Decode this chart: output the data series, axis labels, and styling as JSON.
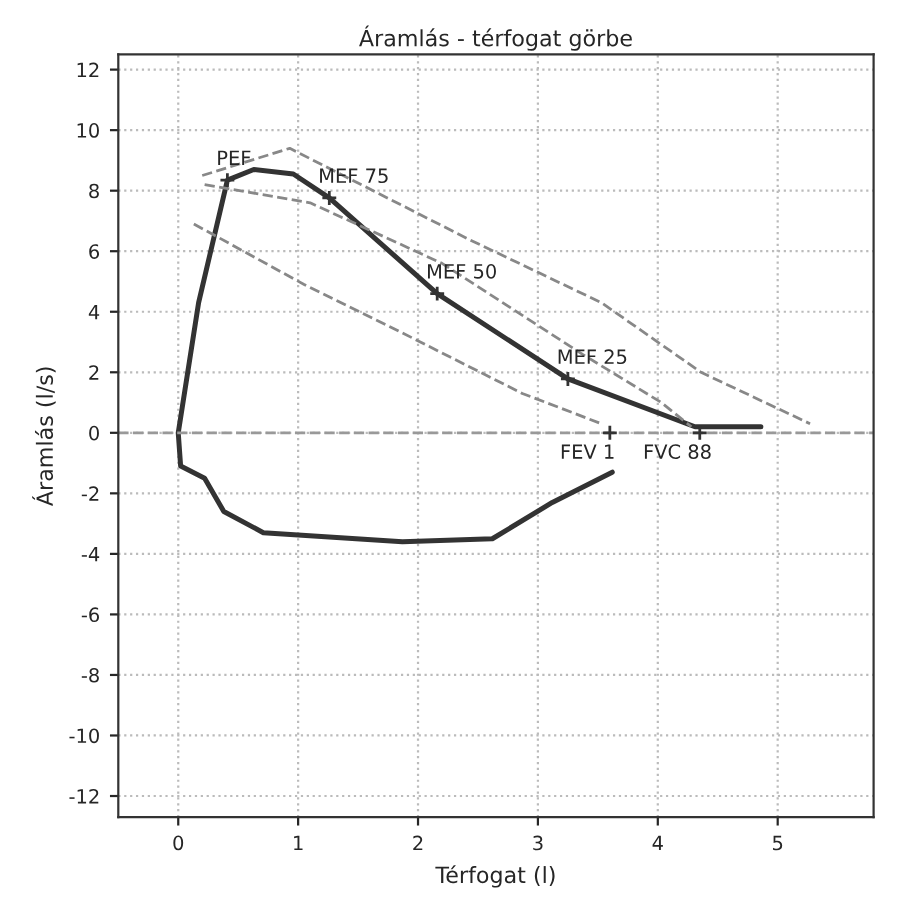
{
  "chart_data": {
    "type": "line",
    "title": "Áramlás - térfogat görbe",
    "xlabel": "Térfogat (l)",
    "ylabel": "Áramlás (l/s)",
    "xlim": [
      -0.5,
      5.8
    ],
    "ylim": [
      -12.7,
      12.5
    ],
    "xticks": [
      0,
      1,
      2,
      3,
      4,
      5
    ],
    "yticks": [
      -12,
      -10,
      -8,
      -6,
      -4,
      -2,
      0,
      2,
      4,
      6,
      8,
      10,
      12
    ],
    "grid": true,
    "marker": "none",
    "series": [
      {
        "color": "#333333",
        "line_style": "solid",
        "x": [
          3.62,
          3.12,
          2.62,
          1.87,
          0.71,
          0.38,
          0.22,
          0.02,
          0,
          0.17,
          0.41,
          0.63,
          0.96,
          1.26,
          2.16,
          3.25,
          4.31,
          4.86
        ],
        "values": [
          -1.3,
          -2.3,
          -3.5,
          -3.6,
          -3.3,
          -2.6,
          -1.5,
          -1.1,
          0,
          4.3,
          8.35,
          8.7,
          8.55,
          7.76,
          4.6,
          1.78,
          0.2,
          0.2
        ]
      },
      {
        "color": "#888888",
        "line_style": "dashed",
        "x": [
          0.2,
          0.93,
          2.42,
          3.53,
          4.36,
          5.27
        ],
        "values": [
          8.5,
          9.4,
          6.4,
          4.3,
          2.0,
          0.3
        ]
      },
      {
        "color": "#888888",
        "line_style": "dashed",
        "x": [
          0.22,
          1.1,
          2.2,
          3.37,
          4.03,
          4.28
        ],
        "values": [
          8.2,
          7.6,
          5.6,
          2.6,
          1.0,
          0.2
        ]
      },
      {
        "color": "#888888",
        "line_style": "dashed",
        "x": [
          0.13,
          1.05,
          1.87,
          2.87,
          3.53
        ],
        "values": [
          6.9,
          4.9,
          3.3,
          1.3,
          0.3
        ]
      }
    ],
    "ref_lines": [
      {
        "axis": "y",
        "value": 0,
        "color": "#999999",
        "line_style": "dashed"
      }
    ],
    "annotations": [
      {
        "text": "PEF",
        "x": 0.41,
        "y": 8.35
      },
      {
        "text": "MEF 75",
        "x": 1.26,
        "y": 7.76
      },
      {
        "text": "MEF 50",
        "x": 2.16,
        "y": 4.6
      },
      {
        "text": "MEF 25",
        "x": 3.25,
        "y": 1.78
      },
      {
        "text": "FEV 1",
        "x": 3.6,
        "y": 0
      },
      {
        "text": "FVC 88",
        "x": 4.35,
        "y": 0
      }
    ]
  }
}
